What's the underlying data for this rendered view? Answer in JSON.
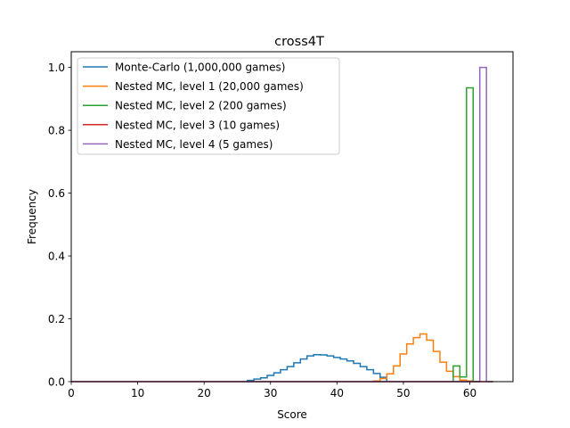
{
  "chart_data": {
    "type": "step",
    "title": "cross4T",
    "xlabel": "Score",
    "ylabel": "Frequency",
    "xlim": [
      0,
      66.5
    ],
    "ylim": [
      0,
      1.05
    ],
    "xticks": [
      0,
      10,
      20,
      30,
      40,
      50,
      60
    ],
    "yticks": [
      0.0,
      0.2,
      0.4,
      0.6,
      0.8,
      1.0
    ],
    "xtick_labels": [
      "0",
      "10",
      "20",
      "30",
      "40",
      "50",
      "60"
    ],
    "ytick_labels": [
      "0.0",
      "0.2",
      "0.4",
      "0.6",
      "0.8",
      "1.0"
    ],
    "legend_position": "top-left",
    "grid": false,
    "series": [
      {
        "name": "Monte-Carlo (1,000,000 games)",
        "color": "#1f77b4",
        "bin_edges": [
          26.5,
          27.5,
          28.5,
          29.5,
          30.5,
          31.5,
          32.5,
          33.5,
          34.5,
          35.5,
          36.5,
          37.5,
          38.5,
          39.5,
          40.5,
          41.5,
          42.5,
          43.5,
          44.5,
          45.5,
          46.5,
          47.5
        ],
        "values": [
          0.004,
          0.008,
          0.012,
          0.02,
          0.028,
          0.038,
          0.048,
          0.06,
          0.072,
          0.082,
          0.086,
          0.085,
          0.082,
          0.077,
          0.072,
          0.066,
          0.058,
          0.048,
          0.038,
          0.026,
          0.014
        ]
      },
      {
        "name": "Nested MC, level 1 (20,000 games)",
        "color": "#ff7f0e",
        "bin_edges": [
          45.5,
          46.5,
          47.5,
          48.5,
          49.5,
          50.5,
          51.5,
          52.5,
          53.5,
          54.5,
          55.5,
          56.5,
          57.5,
          58.5,
          59.5,
          60.5,
          61.5
        ],
        "values": [
          0.002,
          0.01,
          0.025,
          0.05,
          0.088,
          0.12,
          0.14,
          0.152,
          0.132,
          0.096,
          0.062,
          0.033,
          0.016,
          0.005,
          0.002,
          0.0
        ]
      },
      {
        "name": "Nested MC, level 2 (200 games)",
        "color": "#2ca02c",
        "bin_edges": [
          57.5,
          58.5,
          59.5,
          60.5,
          61.5
        ],
        "values": [
          0.05,
          0.015,
          0.935,
          0.0
        ]
      },
      {
        "name": "Nested MC, level 3 (10 games)",
        "color": "#d62728",
        "bin_edges": [
          0,
          63.5
        ],
        "values": [
          0.0
        ]
      },
      {
        "name": "Nested MC, level 4 (5 games)",
        "color": "#9467bd",
        "bin_edges": [
          0,
          61.5,
          62.5,
          63.5
        ],
        "values": [
          0.0,
          1.0,
          0.0
        ]
      }
    ]
  }
}
